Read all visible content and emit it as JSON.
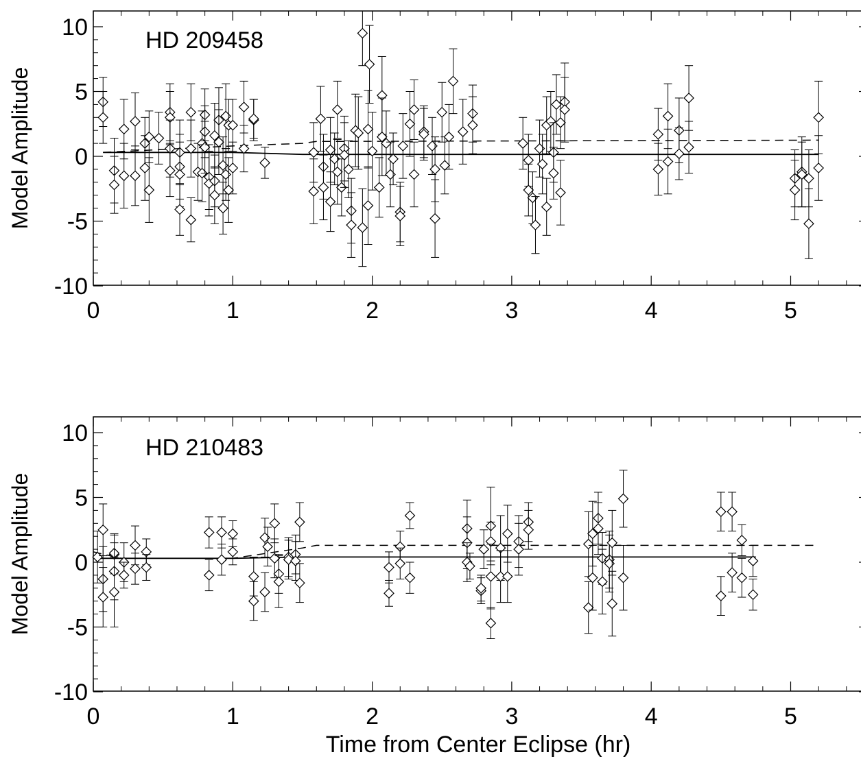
{
  "chart_data": [
    {
      "type": "scatter",
      "annotation": "HD 209458",
      "xlabel": "",
      "ylabel": "Model Amplitude",
      "xlim": [
        0,
        5.5
      ],
      "ylim": [
        -11,
        10
      ],
      "xticks": [
        0,
        1,
        2,
        3,
        4,
        5
      ],
      "xtick_labels": [
        "0",
        "1",
        "2",
        "3",
        "4",
        "5"
      ],
      "yticks": [
        -10,
        -5,
        0,
        5,
        10
      ],
      "ytick_labels": [
        "-10",
        "-5",
        "0",
        "5",
        "10"
      ],
      "grid": false,
      "marker": "diamond",
      "points": [
        [
          0.07,
          4.2,
          1.9
        ],
        [
          0.07,
          3.0,
          2.0
        ],
        [
          0.15,
          -1.1,
          2.5
        ],
        [
          0.15,
          -2.2,
          2.2
        ],
        [
          0.22,
          2.1,
          2.3
        ],
        [
          0.22,
          -1.5,
          2.5
        ],
        [
          0.3,
          2.7,
          2.2
        ],
        [
          0.3,
          -1.5,
          2.3
        ],
        [
          0.37,
          1.0,
          2.0
        ],
        [
          0.37,
          -0.9,
          2.5
        ],
        [
          0.4,
          1.5,
          2.0
        ],
        [
          0.4,
          -2.6,
          2.5
        ],
        [
          0.47,
          1.4,
          2.0
        ],
        [
          0.55,
          3.4,
          2.2
        ],
        [
          0.55,
          3.0,
          2.0
        ],
        [
          0.55,
          0.6,
          2.2
        ],
        [
          0.55,
          -1.1,
          2.0
        ],
        [
          0.62,
          0.3,
          2.5
        ],
        [
          0.62,
          -0.8,
          2.5
        ],
        [
          0.62,
          -1.4,
          2.5
        ],
        [
          0.62,
          -4.1,
          2.0
        ],
        [
          0.7,
          3.4,
          2.2
        ],
        [
          0.7,
          0.6,
          2.2
        ],
        [
          0.7,
          -4.9,
          1.7
        ],
        [
          0.75,
          -1.2,
          2.2
        ],
        [
          0.78,
          1.0,
          2.5
        ],
        [
          0.78,
          -1.3,
          2.2
        ],
        [
          0.8,
          3.2,
          2.0
        ],
        [
          0.8,
          1.9,
          2.0
        ],
        [
          0.8,
          0.7,
          2.0
        ],
        [
          0.83,
          -1.6,
          2.5
        ],
        [
          0.83,
          -2.1,
          2.5
        ],
        [
          0.87,
          1.6,
          2.5
        ],
        [
          0.87,
          -1.9,
          2.0
        ],
        [
          0.87,
          -3.0,
          2.2
        ],
        [
          0.9,
          2.8,
          2.5
        ],
        [
          0.9,
          1.1,
          2.5
        ],
        [
          0.93,
          -0.7,
          2.2
        ],
        [
          0.93,
          -4.0,
          2.0
        ],
        [
          0.95,
          3.1,
          2.5
        ],
        [
          0.95,
          -1.4,
          2.0
        ],
        [
          0.97,
          2.4,
          2.0
        ],
        [
          0.97,
          -2.6,
          2.5
        ],
        [
          1.0,
          2.4,
          2.0
        ],
        [
          1.0,
          -0.9,
          2.0
        ],
        [
          1.08,
          3.8,
          2.0
        ],
        [
          1.08,
          0.6,
          1.8
        ],
        [
          1.15,
          2.8,
          1.6
        ],
        [
          1.15,
          2.9,
          1.5
        ],
        [
          1.23,
          -0.5,
          1.2
        ],
        [
          1.58,
          0.3,
          2.3
        ],
        [
          1.58,
          -2.7,
          2.5
        ],
        [
          1.63,
          2.9,
          2.5
        ],
        [
          1.65,
          -0.8,
          2.5
        ],
        [
          1.65,
          -2.4,
          2.5
        ],
        [
          1.7,
          0.5,
          2.5
        ],
        [
          1.7,
          -3.5,
          2.3
        ],
        [
          1.73,
          -0.2,
          2.0
        ],
        [
          1.75,
          3.6,
          2.2
        ],
        [
          1.75,
          -1.2,
          2.5
        ],
        [
          1.78,
          -2.4,
          2.2
        ],
        [
          1.8,
          0.6,
          2.5
        ],
        [
          1.8,
          0.1,
          2.5
        ],
        [
          1.83,
          -1.0,
          2.2
        ],
        [
          1.85,
          -4.2,
          2.5
        ],
        [
          1.85,
          -5.3,
          2.5
        ],
        [
          1.88,
          2.0,
          2.8
        ],
        [
          1.9,
          1.8,
          2.8
        ],
        [
          1.93,
          9.5,
          2.5
        ],
        [
          1.93,
          -5.5,
          3.0
        ],
        [
          1.97,
          2.1,
          3.0
        ],
        [
          1.97,
          -3.8,
          3.0
        ],
        [
          1.98,
          7.1,
          3.0
        ],
        [
          2.0,
          0.4,
          3.0
        ],
        [
          2.05,
          -2.4,
          2.3
        ],
        [
          2.07,
          4.7,
          3.0
        ],
        [
          2.07,
          1.5,
          3.0
        ],
        [
          2.1,
          1.0,
          2.5
        ],
        [
          2.13,
          -1.4,
          2.5
        ],
        [
          2.15,
          -0.2,
          2.0
        ],
        [
          2.2,
          -4.3,
          2.3
        ],
        [
          2.2,
          -4.6,
          2.3
        ],
        [
          2.22,
          0.8,
          2.5
        ],
        [
          2.27,
          2.5,
          2.5
        ],
        [
          2.3,
          3.6,
          2.3
        ],
        [
          2.3,
          -1.4,
          2.5
        ],
        [
          2.37,
          1.9,
          2.0
        ],
        [
          2.37,
          1.7,
          2.0
        ],
        [
          2.43,
          0.8,
          2.2
        ],
        [
          2.45,
          -1.0,
          2.5
        ],
        [
          2.45,
          -4.8,
          3.0
        ],
        [
          2.5,
          3.4,
          2.3
        ],
        [
          2.52,
          -0.7,
          2.2
        ],
        [
          2.55,
          1.5,
          2.5
        ],
        [
          2.58,
          5.8,
          2.5
        ],
        [
          2.65,
          1.9,
          2.5
        ],
        [
          2.72,
          3.3,
          2.2
        ],
        [
          2.72,
          2.4,
          2.2
        ],
        [
          3.08,
          1.0,
          2.0
        ],
        [
          3.12,
          -0.3,
          2.0
        ],
        [
          3.12,
          -2.6,
          2.0
        ],
        [
          3.15,
          -3.2,
          2.0
        ],
        [
          3.17,
          -5.3,
          2.2
        ],
        [
          3.2,
          0.6,
          2.2
        ],
        [
          3.22,
          -0.6,
          2.3
        ],
        [
          3.25,
          2.4,
          2.2
        ],
        [
          3.25,
          -3.9,
          2.2
        ],
        [
          3.28,
          2.7,
          2.3
        ],
        [
          3.3,
          0.3,
          2.3
        ],
        [
          3.3,
          -1.3,
          2.0
        ],
        [
          3.32,
          4.0,
          2.3
        ],
        [
          3.35,
          2.6,
          2.0
        ],
        [
          3.35,
          -2.8,
          2.5
        ],
        [
          3.38,
          4.2,
          3.0
        ],
        [
          3.38,
          3.6,
          2.5
        ],
        [
          4.05,
          1.7,
          2.0
        ],
        [
          4.05,
          -1.0,
          2.0
        ],
        [
          4.12,
          3.1,
          2.5
        ],
        [
          4.12,
          -0.4,
          2.5
        ],
        [
          4.2,
          2.0,
          2.5
        ],
        [
          4.2,
          0.2,
          2.0
        ],
        [
          4.27,
          4.5,
          2.5
        ],
        [
          4.27,
          0.7,
          2.0
        ],
        [
          5.03,
          -1.7,
          2.2
        ],
        [
          5.03,
          -2.6,
          2.3
        ],
        [
          5.08,
          -1.2,
          2.7
        ],
        [
          5.08,
          -1.4,
          2.5
        ],
        [
          5.13,
          -1.7,
          2.2
        ],
        [
          5.13,
          -5.2,
          2.7
        ],
        [
          5.2,
          3.0,
          2.8
        ],
        [
          5.2,
          -0.9,
          2.5
        ]
      ],
      "solid_line": [
        [
          0.07,
          0.3
        ],
        [
          1.0,
          0.3
        ],
        [
          1.5,
          0.15
        ],
        [
          5.2,
          0.15
        ]
      ],
      "dashed_line": [
        [
          0.07,
          0.3
        ],
        [
          1.0,
          0.8
        ],
        [
          1.5,
          1.0
        ],
        [
          1.6,
          1.15
        ],
        [
          5.2,
          1.25
        ]
      ]
    },
    {
      "type": "scatter",
      "annotation": "HD 210483",
      "xlabel": "Time from Center Eclipse (hr)",
      "ylabel": "Model Amplitude",
      "xlim": [
        0,
        5.5
      ],
      "ylim": [
        -11,
        10
      ],
      "xticks": [
        0,
        1,
        2,
        3,
        4,
        5
      ],
      "xtick_labels": [
        "0",
        "1",
        "2",
        "3",
        "4",
        "5"
      ],
      "yticks": [
        -10,
        -5,
        0,
        5,
        10
      ],
      "ytick_labels": [
        "-10",
        "-5",
        "0",
        "5",
        "10"
      ],
      "grid": false,
      "marker": "diamond",
      "points": [
        [
          0.03,
          0.4,
          2.0
        ],
        [
          0.07,
          2.5,
          2.0
        ],
        [
          0.07,
          -1.3,
          2.5
        ],
        [
          0.07,
          -2.7,
          2.3
        ],
        [
          0.15,
          0.6,
          1.5
        ],
        [
          0.15,
          0.7,
          1.5
        ],
        [
          0.15,
          -0.7,
          2.2
        ],
        [
          0.15,
          -2.3,
          2.7
        ],
        [
          0.22,
          0.0,
          1.5
        ],
        [
          0.22,
          -1.0,
          1.0
        ],
        [
          0.3,
          1.3,
          1.5
        ],
        [
          0.3,
          -0.5,
          1.2
        ],
        [
          0.38,
          0.8,
          1.0
        ],
        [
          0.38,
          -0.4,
          1.0
        ],
        [
          0.83,
          2.3,
          1.2
        ],
        [
          0.83,
          -1.0,
          1.2
        ],
        [
          0.92,
          2.3,
          1.2
        ],
        [
          0.92,
          0.2,
          1.2
        ],
        [
          1.0,
          2.2,
          1.0
        ],
        [
          1.0,
          0.8,
          1.0
        ],
        [
          1.15,
          -1.1,
          1.5
        ],
        [
          1.15,
          -3.0,
          1.5
        ],
        [
          1.23,
          1.9,
          1.5
        ],
        [
          1.23,
          -2.3,
          1.5
        ],
        [
          1.25,
          1.2,
          1.5
        ],
        [
          1.3,
          3.0,
          1.5
        ],
        [
          1.3,
          0.3,
          1.5
        ],
        [
          1.33,
          -0.9,
          1.5
        ],
        [
          1.33,
          -1.5,
          2.0
        ],
        [
          1.4,
          0.4,
          1.5
        ],
        [
          1.4,
          0.2,
          1.5
        ],
        [
          1.45,
          0.6,
          1.5
        ],
        [
          1.45,
          0.1,
          1.5
        ],
        [
          1.48,
          3.1,
          1.5
        ],
        [
          1.48,
          -1.6,
          1.5
        ],
        [
          2.12,
          -0.4,
          1.2
        ],
        [
          2.12,
          -2.4,
          1.0
        ],
        [
          2.2,
          1.2,
          1.2
        ],
        [
          2.2,
          -0.1,
          1.2
        ],
        [
          2.27,
          3.6,
          1.0
        ],
        [
          2.27,
          -1.2,
          1.2
        ],
        [
          2.68,
          2.6,
          2.2
        ],
        [
          2.68,
          1.5,
          2.0
        ],
        [
          2.68,
          0.0,
          1.5
        ],
        [
          2.7,
          -0.3,
          1.0
        ],
        [
          2.78,
          -2.2,
          1.0
        ],
        [
          2.78,
          -2.0,
          1.0
        ],
        [
          2.8,
          1.0,
          1.5
        ],
        [
          2.85,
          2.8,
          3.0
        ],
        [
          2.85,
          1.6,
          1.5
        ],
        [
          2.85,
          -1.1,
          2.5
        ],
        [
          2.85,
          -4.7,
          1.2
        ],
        [
          2.92,
          1.1,
          2.5
        ],
        [
          2.92,
          -1.1,
          2.0
        ],
        [
          2.97,
          2.2,
          2.2
        ],
        [
          2.97,
          -1.1,
          2.0
        ],
        [
          3.05,
          1.6,
          2.0
        ],
        [
          3.05,
          1.0,
          2.0
        ],
        [
          3.12,
          3.1,
          1.5
        ],
        [
          3.12,
          2.5,
          1.5
        ],
        [
          3.55,
          1.4,
          2.5
        ],
        [
          3.55,
          -3.5,
          2.0
        ],
        [
          3.58,
          2.2,
          2.5
        ],
        [
          3.58,
          -1.2,
          2.5
        ],
        [
          3.62,
          3.4,
          2.0
        ],
        [
          3.62,
          2.6,
          2.0
        ],
        [
          3.65,
          0.3,
          2.0
        ],
        [
          3.65,
          -1.5,
          2.5
        ],
        [
          3.7,
          0.2,
          2.2
        ],
        [
          3.7,
          -0.1,
          2.2
        ],
        [
          3.72,
          1.5,
          2.5
        ],
        [
          3.72,
          -3.2,
          2.5
        ],
        [
          3.8,
          4.9,
          2.2
        ],
        [
          3.8,
          -1.2,
          2.5
        ],
        [
          4.5,
          3.9,
          1.5
        ],
        [
          4.5,
          -2.6,
          1.5
        ],
        [
          4.58,
          3.9,
          1.5
        ],
        [
          4.58,
          -0.8,
          1.5
        ],
        [
          4.65,
          1.7,
          1.2
        ],
        [
          4.65,
          -1.2,
          1.5
        ],
        [
          4.73,
          0.1,
          1.2
        ],
        [
          4.73,
          -2.5,
          1.2
        ]
      ],
      "solid_line": [
        [
          0.0,
          0.3
        ],
        [
          1.0,
          0.3
        ],
        [
          1.5,
          0.4
        ],
        [
          4.75,
          0.4
        ]
      ],
      "dashed_line": [
        [
          0.0,
          0.8
        ],
        [
          0.2,
          0.3
        ],
        [
          1.0,
          0.3
        ],
        [
          1.5,
          1.1
        ],
        [
          1.6,
          1.3
        ],
        [
          5.2,
          1.3
        ]
      ]
    }
  ]
}
